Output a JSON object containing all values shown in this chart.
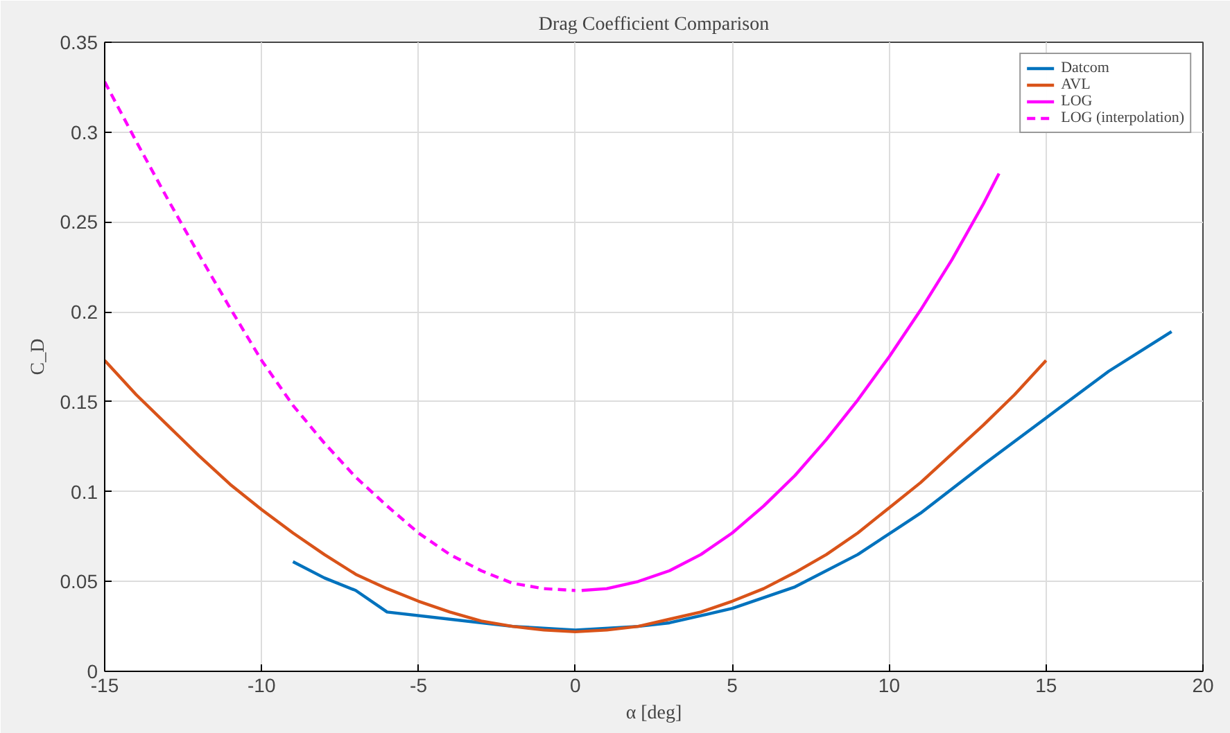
{
  "chart_data": {
    "type": "line",
    "title": "Drag Coefficient Comparison",
    "xlabel": "α [deg]",
    "ylabel": "C_D",
    "xlim": [
      -15,
      20
    ],
    "xticks": [
      -15,
      -10,
      -5,
      0,
      5,
      10,
      15,
      20
    ],
    "ylim": [
      0,
      0.35
    ],
    "yticks": [
      0,
      0.05,
      0.1,
      0.15,
      0.2,
      0.25,
      0.3,
      0.35
    ],
    "grid": true,
    "legend": "top right",
    "series": [
      {
        "name": "Datcom",
        "color": "#0072bd",
        "line_style": "solid",
        "x": [
          -9,
          -8,
          -7,
          -6,
          -4,
          -2,
          0,
          2,
          3,
          5,
          7,
          9,
          11,
          13,
          15,
          17,
          19
        ],
        "values": [
          0.061,
          0.052,
          0.045,
          0.033,
          0.029,
          0.025,
          0.023,
          0.025,
          0.027,
          0.035,
          0.047,
          0.065,
          0.088,
          0.115,
          0.141,
          0.167,
          0.189
        ]
      },
      {
        "name": "AVL",
        "color": "#d95319",
        "line_style": "solid",
        "x": [
          -15,
          -14,
          -13,
          -12,
          -11,
          -10,
          -9,
          -8,
          -7,
          -6,
          -5,
          -4,
          -3,
          -2,
          -1,
          0,
          1,
          2,
          3,
          4,
          5,
          6,
          7,
          8,
          9,
          10,
          11,
          12,
          13,
          14,
          15
        ],
        "values": [
          0.173,
          0.154,
          0.137,
          0.12,
          0.104,
          0.09,
          0.077,
          0.065,
          0.054,
          0.046,
          0.039,
          0.033,
          0.028,
          0.025,
          0.023,
          0.022,
          0.023,
          0.025,
          0.029,
          0.033,
          0.039,
          0.046,
          0.055,
          0.065,
          0.077,
          0.091,
          0.105,
          0.121,
          0.137,
          0.154,
          0.173
        ]
      },
      {
        "name": "LOG",
        "color": "#ff00ff",
        "line_style": "solid",
        "x": [
          0.2,
          1,
          2,
          3,
          4,
          5,
          6,
          7,
          8,
          9,
          10,
          11,
          12,
          13,
          13.5
        ],
        "values": [
          0.045,
          0.046,
          0.05,
          0.056,
          0.065,
          0.077,
          0.092,
          0.109,
          0.129,
          0.151,
          0.175,
          0.201,
          0.229,
          0.26,
          0.277
        ]
      },
      {
        "name": "LOG (interpolation)",
        "color": "#ff00ff",
        "line_style": "dashed",
        "x": [
          -15,
          -14,
          -13,
          -12,
          -11,
          -10,
          -9,
          -8,
          -7,
          -6,
          -5,
          -4,
          -3,
          -2,
          -1,
          0
        ],
        "values": [
          0.328,
          0.295,
          0.263,
          0.232,
          0.202,
          0.173,
          0.148,
          0.127,
          0.108,
          0.092,
          0.077,
          0.065,
          0.056,
          0.049,
          0.046,
          0.045
        ]
      }
    ]
  }
}
